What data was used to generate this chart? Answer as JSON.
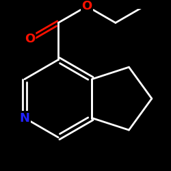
{
  "background_color": "#000000",
  "bond_color": "#ffffff",
  "N_color": "#2222ff",
  "O_color": "#ff1100",
  "bond_width": 2.0,
  "font_size_atom": 13,
  "figsize": [
    2.5,
    2.5
  ],
  "dpi": 100,
  "xlim": [
    -2.2,
    2.2
  ],
  "ylim": [
    -2.0,
    2.0
  ]
}
